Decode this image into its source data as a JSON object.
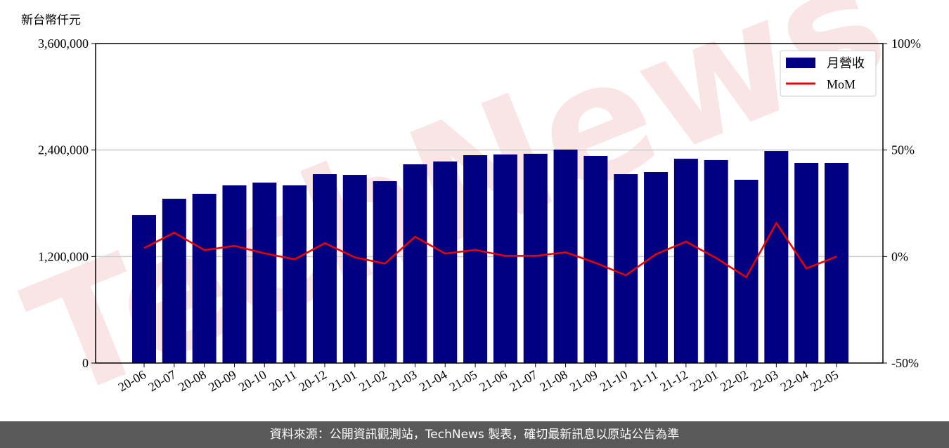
{
  "chart_data": {
    "type": "bar_line",
    "y_label": "新台幣仟元",
    "watermark": "TechNews",
    "categories": [
      "20-06",
      "20-07",
      "20-08",
      "20-09",
      "20-10",
      "20-11",
      "20-12",
      "21-01",
      "21-02",
      "21-03",
      "21-04",
      "21-05",
      "21-06",
      "21-07",
      "21-08",
      "21-09",
      "21-10",
      "21-11",
      "21-12",
      "22-01",
      "22-02",
      "22-03",
      "22-04",
      "22-05"
    ],
    "series": [
      {
        "name": "月營收",
        "type": "bar",
        "color": "#000080",
        "values": [
          1669000,
          1851000,
          1907000,
          2002000,
          2033000,
          2002000,
          2128000,
          2120000,
          2049000,
          2239000,
          2271000,
          2342000,
          2350000,
          2358000,
          2405000,
          2334000,
          2128000,
          2152000,
          2302000,
          2287000,
          2065000,
          2389000,
          2255000,
          2255000
        ]
      },
      {
        "name": "MoM",
        "type": "line",
        "axis": "y2",
        "color": "#ee0000",
        "values": [
          4.0,
          11.2,
          3.0,
          5.0,
          1.5,
          -1.3,
          6.3,
          -0.4,
          -3.3,
          9.3,
          1.4,
          3.1,
          0.3,
          0.3,
          2.0,
          -3.0,
          -8.8,
          1.1,
          7.0,
          -0.7,
          -9.7,
          15.7,
          -5.6,
          0.0
        ]
      }
    ],
    "ylim": [
      0,
      3600000
    ],
    "yticks": [
      {
        "value": 0,
        "label": "0"
      },
      {
        "value": 1200000,
        "label": "1,200,000"
      },
      {
        "value": 2400000,
        "label": "2,400,000"
      },
      {
        "value": 3600000,
        "label": "3,600,000"
      }
    ],
    "y2lim": [
      -50,
      100
    ],
    "y2ticks": [
      {
        "value": -50,
        "label": "-50%"
      },
      {
        "value": 0,
        "label": "0%"
      },
      {
        "value": 50,
        "label": "50%"
      },
      {
        "value": 100,
        "label": "100%"
      }
    ],
    "grid": true,
    "legend_position": "upper right"
  },
  "footer": "資料來源：公開資訊觀測站，TechNews 製表，確切最新訊息以原站公告為準"
}
